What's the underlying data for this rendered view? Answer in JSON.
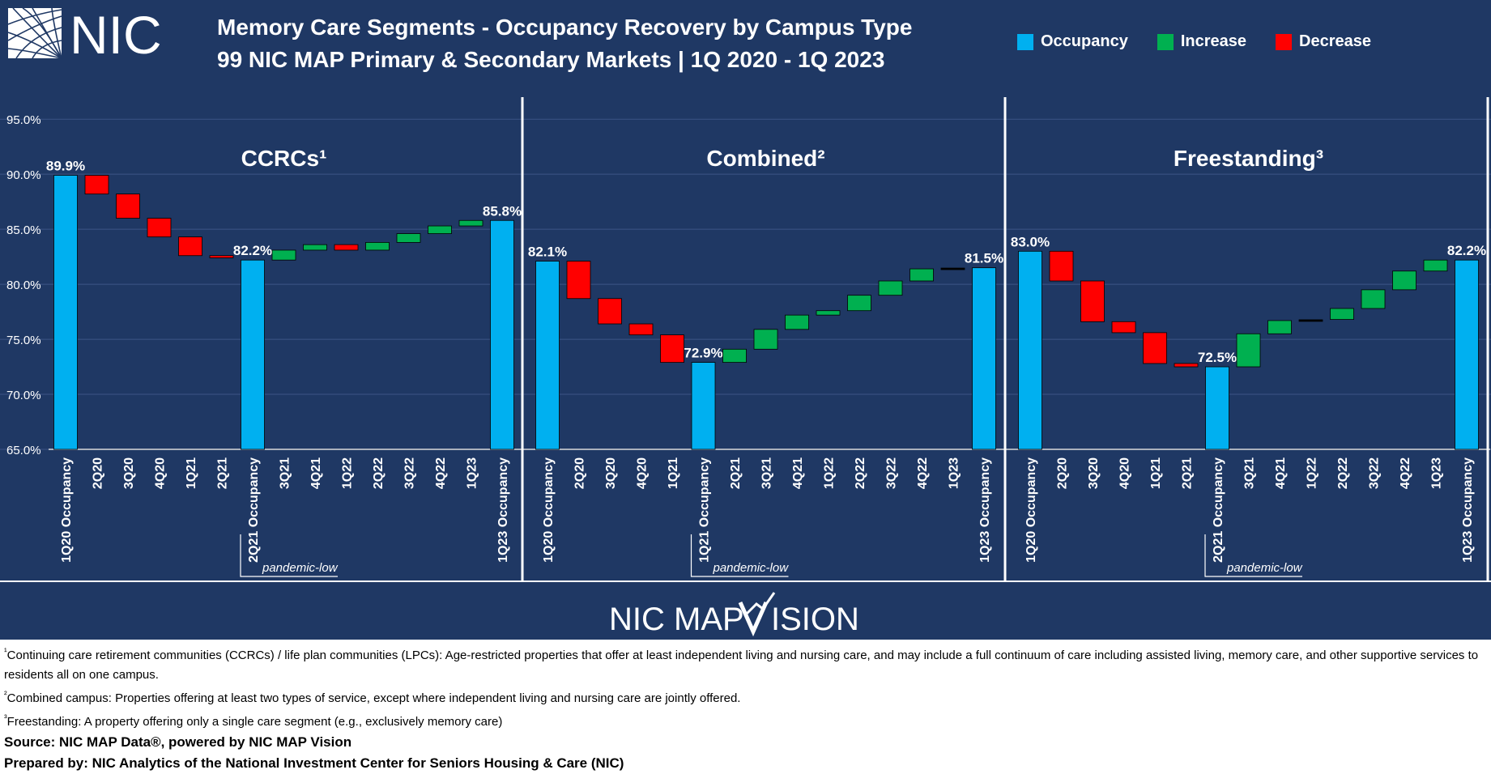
{
  "header": {
    "logo_text": "NIC",
    "title_line1": "Memory Care Segments - Occupancy Recovery by Campus Type",
    "title_line2": "99 NIC MAP Primary & Secondary Markets | 1Q 2020 - 1Q 2023"
  },
  "legend": [
    {
      "label": "Occupancy",
      "color": "#00b0f0"
    },
    {
      "label": "Increase",
      "color": "#00b050"
    },
    {
      "label": "Decrease",
      "color": "#ff0000"
    }
  ],
  "colors": {
    "background": "#1f3864",
    "occupancy": "#00b0f0",
    "increase": "#00b050",
    "decrease": "#ff0000"
  },
  "y_axis": {
    "ticks": [
      "95.0%",
      "90.0%",
      "85.0%",
      "80.0%",
      "75.0%",
      "70.0%",
      "65.0%"
    ],
    "ylim": [
      65,
      97
    ]
  },
  "chart_data": [
    {
      "type": "bar",
      "subtype": "waterfall",
      "title": "CCRCs¹",
      "categories": [
        "1Q20 Occupancy",
        "2Q20",
        "3Q20",
        "4Q20",
        "1Q21",
        "2Q21",
        "2Q21 Occupancy",
        "3Q21",
        "4Q21",
        "1Q22",
        "2Q22",
        "3Q22",
        "4Q22",
        "1Q23",
        "1Q23 Occupancy"
      ],
      "steps": [
        {
          "kind": "total",
          "value": 89.9,
          "label": "89.9%"
        },
        {
          "kind": "delta",
          "value": -1.7
        },
        {
          "kind": "delta",
          "value": -2.2
        },
        {
          "kind": "delta",
          "value": -1.7
        },
        {
          "kind": "delta",
          "value": -1.7
        },
        {
          "kind": "delta",
          "value": -0.2
        },
        {
          "kind": "total",
          "value": 82.2,
          "label": "82.2%"
        },
        {
          "kind": "delta",
          "value": 0.9
        },
        {
          "kind": "delta",
          "value": 0.5
        },
        {
          "kind": "delta",
          "value": -0.5
        },
        {
          "kind": "delta",
          "value": 0.7
        },
        {
          "kind": "delta",
          "value": 0.8
        },
        {
          "kind": "delta",
          "value": 0.7
        },
        {
          "kind": "delta",
          "value": 0.5
        },
        {
          "kind": "total",
          "value": 85.8,
          "label": "85.8%"
        }
      ],
      "pandemic_low_label": "pandemic-low",
      "ylim": [
        65,
        97
      ]
    },
    {
      "type": "bar",
      "subtype": "waterfall",
      "title": "Combined²",
      "categories": [
        "1Q20 Occupancy",
        "2Q20",
        "3Q20",
        "4Q20",
        "1Q21",
        "1Q21 Occupancy",
        "2Q21",
        "3Q21",
        "4Q21",
        "1Q22",
        "2Q22",
        "3Q22",
        "4Q22",
        "1Q23",
        "1Q23 Occupancy"
      ],
      "steps": [
        {
          "kind": "total",
          "value": 82.1,
          "label": "82.1%"
        },
        {
          "kind": "delta",
          "value": -3.4
        },
        {
          "kind": "delta",
          "value": -2.3
        },
        {
          "kind": "delta",
          "value": -1.0
        },
        {
          "kind": "delta",
          "value": -2.5
        },
        {
          "kind": "total",
          "value": 72.9,
          "label": "72.9%"
        },
        {
          "kind": "delta",
          "value": 1.2
        },
        {
          "kind": "delta",
          "value": 1.8
        },
        {
          "kind": "delta",
          "value": 1.3
        },
        {
          "kind": "delta",
          "value": 0.4
        },
        {
          "kind": "delta",
          "value": 1.4
        },
        {
          "kind": "delta",
          "value": 1.3
        },
        {
          "kind": "delta",
          "value": 1.1
        },
        {
          "kind": "delta",
          "value": 0.1
        },
        {
          "kind": "total",
          "value": 81.5,
          "label": "81.5%"
        }
      ],
      "pandemic_low_label": "pandemic-low",
      "ylim": [
        65,
        97
      ]
    },
    {
      "type": "bar",
      "subtype": "waterfall",
      "title": "Freestanding³",
      "categories": [
        "1Q20 Occupancy",
        "2Q20",
        "3Q20",
        "4Q20",
        "1Q21",
        "2Q21",
        "2Q21 Occupancy",
        "3Q21",
        "4Q21",
        "1Q22",
        "2Q22",
        "3Q22",
        "4Q22",
        "1Q23",
        "1Q23 Occupancy"
      ],
      "steps": [
        {
          "kind": "total",
          "value": 83.0,
          "label": "83.0%"
        },
        {
          "kind": "delta",
          "value": -2.7
        },
        {
          "kind": "delta",
          "value": -3.7
        },
        {
          "kind": "delta",
          "value": -1.0
        },
        {
          "kind": "delta",
          "value": -2.8
        },
        {
          "kind": "delta",
          "value": -0.3
        },
        {
          "kind": "total",
          "value": 72.5,
          "label": "72.5%"
        },
        {
          "kind": "delta",
          "value": 3.0
        },
        {
          "kind": "delta",
          "value": 1.2
        },
        {
          "kind": "delta",
          "value": 0.1
        },
        {
          "kind": "delta",
          "value": 1.0
        },
        {
          "kind": "delta",
          "value": 1.7
        },
        {
          "kind": "delta",
          "value": 1.7
        },
        {
          "kind": "delta",
          "value": 1.0
        },
        {
          "kind": "total",
          "value": 82.2,
          "label": "82.2%"
        }
      ],
      "pandemic_low_label": "pandemic-low",
      "ylim": [
        65,
        97
      ]
    }
  ],
  "brand": {
    "text_left": "NIC MAP",
    "text_right": "ISION"
  },
  "footer": {
    "note1_mark": "¹",
    "note1": "Continuing care retirement communities (CCRCs) / life plan communities (LPCs): Age-restricted properties that offer at least independent living and nursing care, and may include a full continuum of care including assisted living, memory care, and other supportive services to residents all on one campus.",
    "note2_mark": "²",
    "note2": "Combined campus: Properties offering at least two types of service, except where independent living and nursing care are jointly offered.",
    "note3_mark": "³",
    "note3": "Freestanding: A property offering only a single care segment (e.g., exclusively memory care)",
    "source": "Source: NIC MAP Data®, powered by NIC MAP Vision",
    "prepared": "Prepared by: NIC Analytics of the National Investment Center for Seniors Housing & Care (NIC)"
  }
}
